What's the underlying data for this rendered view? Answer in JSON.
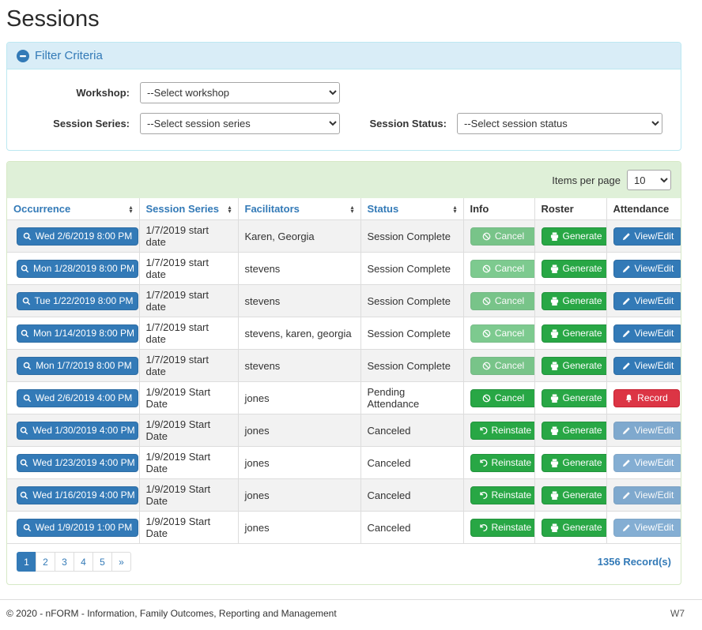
{
  "page": {
    "title": "Sessions"
  },
  "colors": {
    "primary": "#337ab7",
    "primary_border": "#2e6da4",
    "success": "#28a745",
    "danger": "#dc3545",
    "filter_header_bg": "#d9edf7",
    "filter_border": "#bce8f1",
    "table_header_bg": "#dff0d8",
    "table_panel_border": "#d6e9c6",
    "stripe_row_bg": "#f2f2f2"
  },
  "filter": {
    "title": "Filter Criteria",
    "collapse_icon": "minus-circle-icon",
    "fields": [
      {
        "label": "Workshop:",
        "value": "--Select workshop"
      },
      {
        "label": "Session Series:",
        "value": "--Select session series"
      },
      {
        "label": "Session Status:",
        "value": "--Select session status"
      }
    ]
  },
  "table_panel": {
    "items_per_page_label": "Items per page",
    "items_per_page_value": "10",
    "occurrence_icon": "search-icon",
    "columns": [
      {
        "label": "Occurrence",
        "sortable": true
      },
      {
        "label": "Session Series",
        "sortable": true
      },
      {
        "label": "Facilitators",
        "sortable": true
      },
      {
        "label": "Status",
        "sortable": true
      },
      {
        "label": "Info",
        "sortable": false
      },
      {
        "label": "Roster",
        "sortable": false
      },
      {
        "label": "Attendance",
        "sortable": false
      }
    ],
    "rows": [
      {
        "occurrence": "Wed 2/6/2019 8:00 PM",
        "series": "1/7/2019 start date",
        "facilitators": "Karen, Georgia",
        "status": "Session Complete",
        "info": {
          "label": "Cancel",
          "icon": "ban-icon",
          "variant": "success",
          "disabled": true
        },
        "roster": {
          "label": "Generate",
          "icon": "printer-icon",
          "variant": "success",
          "disabled": false
        },
        "attendance": {
          "label": "View/Edit",
          "icon": "pencil-icon",
          "variant": "primary",
          "disabled": false
        }
      },
      {
        "occurrence": "Mon 1/28/2019 8:00 PM",
        "series": "1/7/2019 start date",
        "facilitators": "stevens",
        "status": "Session Complete",
        "info": {
          "label": "Cancel",
          "icon": "ban-icon",
          "variant": "success",
          "disabled": true
        },
        "roster": {
          "label": "Generate",
          "icon": "printer-icon",
          "variant": "success",
          "disabled": false
        },
        "attendance": {
          "label": "View/Edit",
          "icon": "pencil-icon",
          "variant": "primary",
          "disabled": false
        }
      },
      {
        "occurrence": "Tue 1/22/2019 8:00 PM",
        "series": "1/7/2019 start date",
        "facilitators": "stevens",
        "status": "Session Complete",
        "info": {
          "label": "Cancel",
          "icon": "ban-icon",
          "variant": "success",
          "disabled": true
        },
        "roster": {
          "label": "Generate",
          "icon": "printer-icon",
          "variant": "success",
          "disabled": false
        },
        "attendance": {
          "label": "View/Edit",
          "icon": "pencil-icon",
          "variant": "primary",
          "disabled": false
        }
      },
      {
        "occurrence": "Mon 1/14/2019 8:00 PM",
        "series": "1/7/2019 start date",
        "facilitators": "stevens, karen, georgia",
        "status": "Session Complete",
        "info": {
          "label": "Cancel",
          "icon": "ban-icon",
          "variant": "success",
          "disabled": true
        },
        "roster": {
          "label": "Generate",
          "icon": "printer-icon",
          "variant": "success",
          "disabled": false
        },
        "attendance": {
          "label": "View/Edit",
          "icon": "pencil-icon",
          "variant": "primary",
          "disabled": false
        }
      },
      {
        "occurrence": "Mon 1/7/2019 8:00 PM",
        "series": "1/7/2019 start date",
        "facilitators": "stevens",
        "status": "Session Complete",
        "info": {
          "label": "Cancel",
          "icon": "ban-icon",
          "variant": "success",
          "disabled": true
        },
        "roster": {
          "label": "Generate",
          "icon": "printer-icon",
          "variant": "success",
          "disabled": false
        },
        "attendance": {
          "label": "View/Edit",
          "icon": "pencil-icon",
          "variant": "primary",
          "disabled": false
        }
      },
      {
        "occurrence": "Wed 2/6/2019 4:00 PM",
        "series": "1/9/2019 Start Date",
        "facilitators": "jones",
        "status": "Pending Attendance",
        "info": {
          "label": "Cancel",
          "icon": "ban-icon",
          "variant": "success",
          "disabled": false
        },
        "roster": {
          "label": "Generate",
          "icon": "printer-icon",
          "variant": "success",
          "disabled": false
        },
        "attendance": {
          "label": "Record",
          "icon": "bell-icon",
          "variant": "danger",
          "disabled": false
        }
      },
      {
        "occurrence": "Wed 1/30/2019 4:00 PM",
        "series": "1/9/2019 Start Date",
        "facilitators": "jones",
        "status": "Canceled",
        "info": {
          "label": "Reinstate",
          "icon": "undo-icon",
          "variant": "success",
          "disabled": false
        },
        "roster": {
          "label": "Generate",
          "icon": "printer-icon",
          "variant": "success",
          "disabled": false
        },
        "attendance": {
          "label": "View/Edit",
          "icon": "pencil-icon",
          "variant": "primary",
          "disabled": true
        }
      },
      {
        "occurrence": "Wed 1/23/2019 4:00 PM",
        "series": "1/9/2019 Start Date",
        "facilitators": "jones",
        "status": "Canceled",
        "info": {
          "label": "Reinstate",
          "icon": "undo-icon",
          "variant": "success",
          "disabled": false
        },
        "roster": {
          "label": "Generate",
          "icon": "printer-icon",
          "variant": "success",
          "disabled": false
        },
        "attendance": {
          "label": "View/Edit",
          "icon": "pencil-icon",
          "variant": "primary",
          "disabled": true
        }
      },
      {
        "occurrence": "Wed 1/16/2019 4:00 PM",
        "series": "1/9/2019 Start Date",
        "facilitators": "jones",
        "status": "Canceled",
        "info": {
          "label": "Reinstate",
          "icon": "undo-icon",
          "variant": "success",
          "disabled": false
        },
        "roster": {
          "label": "Generate",
          "icon": "printer-icon",
          "variant": "success",
          "disabled": false
        },
        "attendance": {
          "label": "View/Edit",
          "icon": "pencil-icon",
          "variant": "primary",
          "disabled": true
        }
      },
      {
        "occurrence": "Wed 1/9/2019 1:00 PM",
        "series": "1/9/2019 Start Date",
        "facilitators": "jones",
        "status": "Canceled",
        "info": {
          "label": "Reinstate",
          "icon": "undo-icon",
          "variant": "success",
          "disabled": false
        },
        "roster": {
          "label": "Generate",
          "icon": "printer-icon",
          "variant": "success",
          "disabled": false
        },
        "attendance": {
          "label": "View/Edit",
          "icon": "pencil-icon",
          "variant": "primary",
          "disabled": true
        }
      }
    ],
    "record_count": "1356 Record(s)"
  },
  "pagination": {
    "pages": [
      "1",
      "2",
      "3",
      "4",
      "5",
      "»"
    ],
    "active": "1"
  },
  "footer": {
    "left": "© 2020 - nFORM - Information, Family Outcomes, Reporting and Management",
    "right": "W7"
  }
}
